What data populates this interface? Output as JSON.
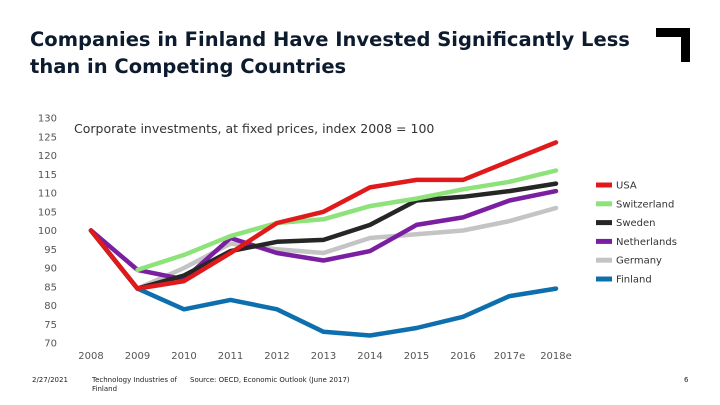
{
  "header": {
    "title": "Companies in Finland Have Invested Significantly Less than in Competing Countries"
  },
  "chart_data": {
    "type": "line",
    "subtitle": "Corporate investments, at fixed prices, index 2008 = 100",
    "categories": [
      "2008",
      "2009",
      "2010",
      "2011",
      "2012",
      "2013",
      "2014",
      "2015",
      "2016",
      "2017e",
      "2018e"
    ],
    "y_ticks": [
      70,
      75,
      80,
      85,
      90,
      95,
      100,
      105,
      110,
      115,
      120,
      125,
      130
    ],
    "ylim": [
      70,
      130
    ],
    "grid": false,
    "legend_position": "right",
    "series": [
      {
        "name": "USA",
        "color": "#e0191b",
        "values": [
          100,
          84.5,
          86.5,
          94,
          102,
          105,
          111.5,
          113.5,
          113.5,
          118.5,
          123.5
        ]
      },
      {
        "name": "Switzerland",
        "color": "#8ee27a",
        "values": [
          null,
          89.5,
          93.5,
          98.5,
          102,
          103,
          106.5,
          108.5,
          111,
          113,
          116
        ]
      },
      {
        "name": "Sweden",
        "color": "#262626",
        "values": [
          100,
          84.5,
          88,
          94.5,
          97,
          97.5,
          101.5,
          108,
          109,
          110.5,
          112.5
        ]
      },
      {
        "name": "Netherlands",
        "color": "#7a1fa2",
        "values": [
          100,
          89.5,
          87,
          98,
          94,
          92,
          94.5,
          101.5,
          103.5,
          108,
          110.5
        ]
      },
      {
        "name": "Germany",
        "color": "#c4c4c4",
        "values": [
          100,
          84.5,
          90,
          96.5,
          95,
          94,
          98,
          99,
          100,
          102.5,
          106
        ]
      },
      {
        "name": "Finland",
        "color": "#0e6fae",
        "values": [
          100,
          84.5,
          79,
          81.5,
          79,
          73,
          72,
          74,
          77,
          82.5,
          84.5
        ]
      }
    ]
  },
  "footer": {
    "date": "2/27/2021",
    "organization": "Technology Industries of Finland",
    "source": "Source: OECD, Economic Outlook (June 2017)",
    "page": "6"
  }
}
